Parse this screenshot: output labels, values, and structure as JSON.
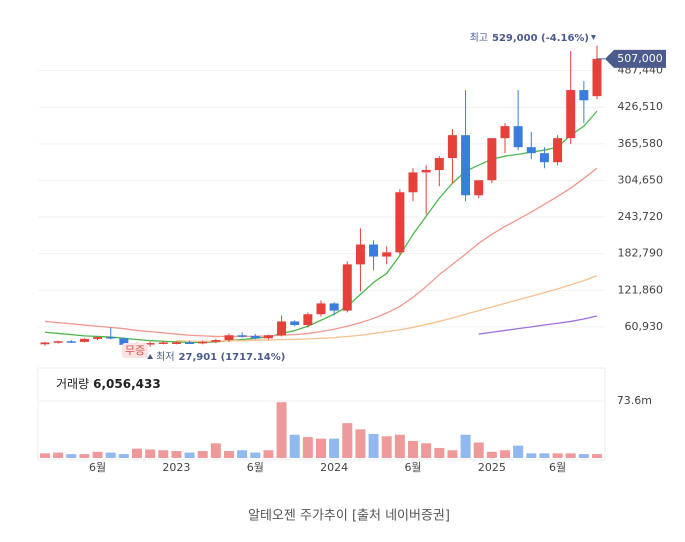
{
  "chart_data": {
    "type": "candlestick",
    "caption": "알테오젠 주가추이 [출처 네이버증권]",
    "categories": [
      null,
      null,
      null,
      null,
      "6월",
      null,
      null,
      null,
      null,
      null,
      "2023",
      null,
      null,
      null,
      null,
      null,
      "6월",
      null,
      null,
      null,
      null,
      null,
      "2024",
      null,
      null,
      null,
      null,
      null,
      "6월",
      null,
      null,
      null,
      null,
      null,
      "2025",
      null,
      null,
      null,
      null,
      "6월",
      null,
      null,
      null
    ],
    "open": [
      32000,
      35000,
      37000,
      36000,
      41000,
      44000,
      42000,
      31000,
      33000,
      34000,
      34000,
      35000,
      34000,
      36000,
      39000,
      47000,
      46000,
      42000,
      47000,
      70000,
      64000,
      82000,
      100000,
      88000,
      165000,
      198000,
      178000,
      185000,
      285000,
      318000,
      322000,
      342000,
      380000,
      280000,
      305000,
      375000,
      395000,
      360000,
      350000,
      335000,
      375000,
      455000,
      445000
    ],
    "high": [
      36000,
      38000,
      39000,
      42000,
      45000,
      60000,
      43000,
      35000,
      36000,
      37000,
      37000,
      38000,
      38000,
      41000,
      50000,
      52000,
      49000,
      48000,
      80000,
      72000,
      85000,
      105000,
      102000,
      170000,
      225000,
      205000,
      195000,
      290000,
      325000,
      330000,
      345000,
      390000,
      455000,
      305000,
      375000,
      400000,
      455000,
      385000,
      360000,
      380000,
      520000,
      470000,
      529000
    ],
    "low": [
      30000,
      33000,
      34000,
      35000,
      39000,
      40000,
      28000,
      28000,
      27901,
      32000,
      32000,
      33000,
      32000,
      34000,
      36000,
      43000,
      40000,
      40000,
      45000,
      62000,
      60000,
      78000,
      80000,
      85000,
      120000,
      155000,
      165000,
      180000,
      270000,
      248000,
      295000,
      300000,
      270000,
      275000,
      300000,
      350000,
      355000,
      340000,
      325000,
      330000,
      365000,
      400000,
      440000
    ],
    "close": [
      35000,
      37000,
      36000,
      41000,
      44000,
      42000,
      31000,
      33000,
      34000,
      35000,
      35000,
      34000,
      36000,
      39000,
      47000,
      46000,
      42000,
      47000,
      70000,
      64000,
      82000,
      100000,
      88000,
      165000,
      198000,
      178000,
      185000,
      285000,
      318000,
      322000,
      342000,
      380000,
      280000,
      305000,
      375000,
      395000,
      360000,
      350000,
      335000,
      375000,
      455000,
      438000,
      507000
    ],
    "up_color": "#e5403a",
    "down_color": "#3b7ddd",
    "moving_averages": [
      {
        "color": "#4cb84c",
        "values": [
          52000,
          50000,
          48000,
          46000,
          45000,
          44000,
          42000,
          40000,
          38000,
          37000,
          36000,
          35000,
          35000,
          36000,
          38000,
          40000,
          42000,
          44000,
          50000,
          55000,
          62000,
          72000,
          82000,
          95000,
          115000,
          135000,
          150000,
          180000,
          215000,
          245000,
          275000,
          300000,
          320000,
          330000,
          340000,
          345000,
          348000,
          352000,
          355000,
          360000,
          380000,
          395000,
          420000
        ]
      },
      {
        "color": "#f4978e",
        "values": [
          70000,
          68000,
          66000,
          64000,
          62000,
          60000,
          58000,
          55000,
          53000,
          51000,
          49000,
          47000,
          46000,
          45000,
          45000,
          45000,
          45000,
          46000,
          47000,
          48000,
          50000,
          53000,
          57000,
          62000,
          68000,
          75000,
          84000,
          95000,
          110000,
          128000,
          148000,
          165000,
          182000,
          200000,
          215000,
          228000,
          240000,
          252000,
          265000,
          278000,
          292000,
          308000,
          325000
        ]
      },
      {
        "color": "#f8c08d",
        "values": [
          null,
          null,
          null,
          null,
          null,
          null,
          null,
          null,
          null,
          null,
          38000,
          37000,
          37000,
          37000,
          38000,
          38000,
          39000,
          39000,
          40000,
          40000,
          41000,
          42000,
          43000,
          45000,
          47000,
          50000,
          53000,
          56000,
          60000,
          65000,
          70000,
          76000,
          82000,
          88000,
          94000,
          100000,
          106000,
          112000,
          118000,
          124000,
          131000,
          138000,
          146000
        ]
      },
      {
        "color": "#a070dc",
        "values": [
          null,
          null,
          null,
          null,
          null,
          null,
          null,
          null,
          null,
          null,
          null,
          null,
          null,
          null,
          null,
          null,
          null,
          null,
          null,
          null,
          null,
          null,
          null,
          null,
          null,
          null,
          null,
          null,
          null,
          null,
          null,
          null,
          null,
          49000,
          52000,
          55000,
          58000,
          61000,
          64000,
          67000,
          70000,
          74000,
          79000
        ]
      }
    ],
    "ylim": [
      0,
      560000
    ],
    "yticks": [
      {
        "value": 60930,
        "label": "60,930"
      },
      {
        "value": 121860,
        "label": "121,860"
      },
      {
        "value": 182790,
        "label": "182,790"
      },
      {
        "value": 243720,
        "label": "243,720"
      },
      {
        "value": 304650,
        "label": "304,650"
      },
      {
        "value": 365580,
        "label": "365,580"
      },
      {
        "value": 426510,
        "label": "426,510"
      },
      {
        "value": 487440,
        "label": "487,440"
      }
    ],
    "current_price": {
      "value": 507000,
      "label": "507,000",
      "color": "#4b5b8e"
    },
    "high_annotation": {
      "label": "최고",
      "text": "529,000 (-4.16%)"
    },
    "low_annotation": {
      "label": "최저",
      "text": "27,901 (1717.14%)"
    },
    "event_label": "무증",
    "volume": {
      "title": "거래량",
      "current": "6,056,433",
      "up_color": "#ef9a9a",
      "down_color": "#92b8f0",
      "values": [
        6,
        7,
        5,
        5,
        8,
        7,
        5,
        12,
        11,
        10,
        9,
        7,
        9,
        19,
        9,
        10,
        7,
        10,
        72,
        30,
        27,
        25,
        25,
        45,
        37,
        31,
        28,
        30,
        22,
        19,
        13,
        10,
        30,
        20,
        8,
        10,
        16,
        6,
        6,
        6,
        6,
        5,
        5
      ],
      "ylim": [
        0,
        80
      ],
      "yticks": [
        {
          "value": 73.6,
          "label": "73.6m"
        }
      ]
    }
  }
}
